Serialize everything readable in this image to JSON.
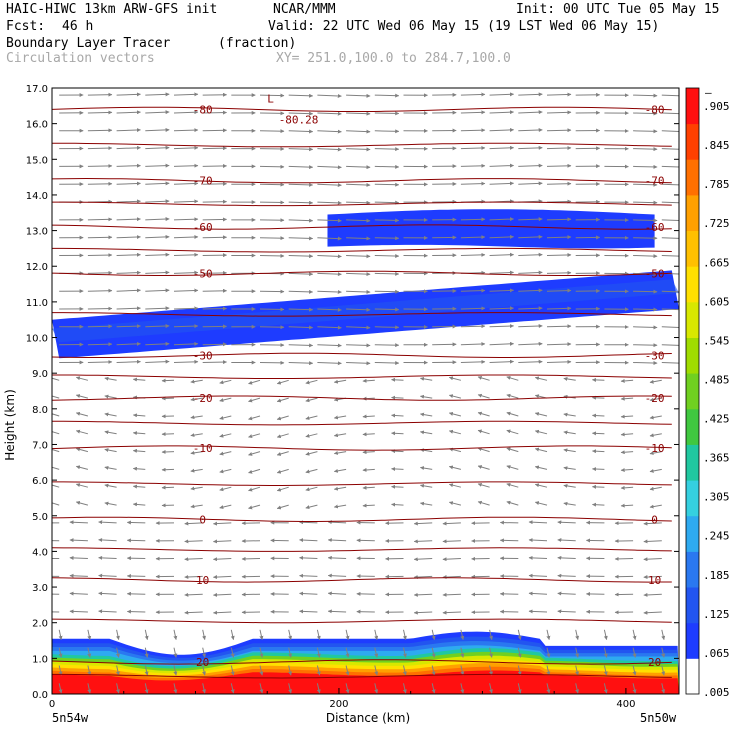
{
  "header": {
    "model": "HAIC-HIWC 13km ARW-GFS init",
    "org": "NCAR/MMM",
    "init": "Init: 00 UTC Tue 05 May 15",
    "fcst_label": "Fcst:",
    "fcst_value": "46 h",
    "valid": "Valid: 22 UTC Wed 06 May 15 (19 LST Wed 06 May 15)",
    "field": "Boundary Layer Tracer",
    "units": "(fraction)",
    "overlay": "Circulation vectors",
    "xsec": "XY= 251.0,100.0 to 284.7,100.0"
  },
  "footer": {
    "left_loc": "5n54w",
    "right_loc": "5n50w"
  },
  "chart_data": {
    "type": "cross-section",
    "title": "Boundary Layer Tracer",
    "xlabel": "Distance (km)",
    "ylabel": "Height (km)",
    "xlim": [
      0,
      437
    ],
    "ylim": [
      0,
      17
    ],
    "x_ticks": [
      0,
      200,
      400
    ],
    "y_ticks": [
      "0.0",
      "1.0",
      "2.0",
      "3.0",
      "4.0",
      "5.0",
      "6.0",
      "7.0",
      "8.0",
      "9.0",
      "10.0",
      "11.0",
      "12.0",
      "13.0",
      "14.0",
      "15.0",
      "16.0",
      "17.0"
    ],
    "colorbar": {
      "labels": [
        ".005",
        ".065",
        ".125",
        ".185",
        ".245",
        ".305",
        ".365",
        ".425",
        ".485",
        ".545",
        ".605",
        ".665",
        ".725",
        ".785",
        ".845",
        ".905"
      ],
      "top_label": "–",
      "colors": [
        "#ffffff",
        "#1e3cff",
        "#2255f0",
        "#2a78f0",
        "#2eaaf0",
        "#35d0e0",
        "#20c8a0",
        "#40c840",
        "#70d020",
        "#a0dc00",
        "#d8e800",
        "#ffe000",
        "#ffc000",
        "#ffa000",
        "#ff7000",
        "#ff4000",
        "#ff1010"
      ]
    },
    "temperature_contours": [
      {
        "label": "-80",
        "height": 16.4
      },
      {
        "label": "-70",
        "height": 14.4
      },
      {
        "label": "-60",
        "height": 13.1
      },
      {
        "label": "-50",
        "height": 11.8
      },
      {
        "label": "-30",
        "height": 9.5
      },
      {
        "label": "-20",
        "height": 8.3
      },
      {
        "label": "-10",
        "height": 6.9
      },
      {
        "label": "0",
        "height": 4.9
      },
      {
        "label": "10",
        "height": 3.2
      },
      {
        "label": "20",
        "height": 0.9
      }
    ],
    "annotations": [
      {
        "text": "L",
        "x": 150,
        "y": 16.6
      },
      {
        "text": "-80.28",
        "x": 158,
        "y": 16.0
      }
    ]
  }
}
